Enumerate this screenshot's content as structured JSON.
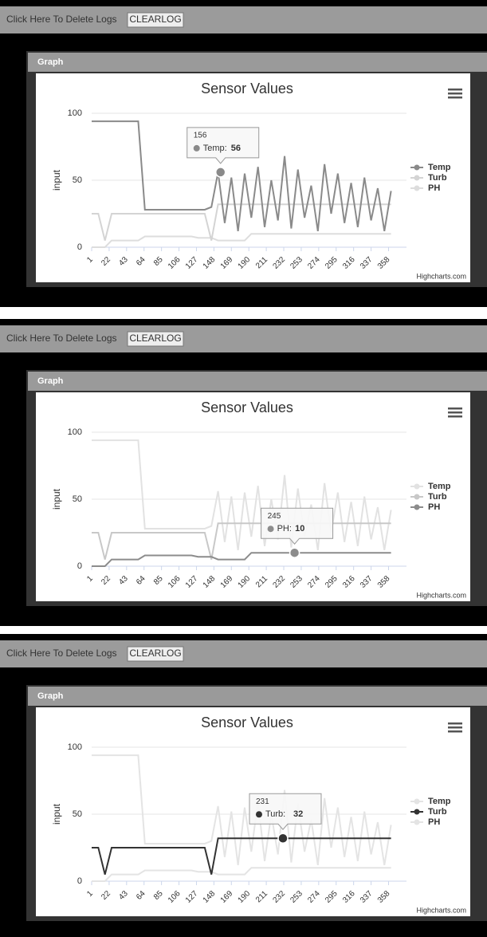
{
  "panels": [
    {
      "toolbar_text": "Click Here To Delete Logs",
      "button": "CLEARLOG",
      "header": "Graph"
    },
    {
      "toolbar_text": "Click Here To Delete Logs",
      "button": "CLEARLOG",
      "header": "Graph"
    },
    {
      "toolbar_text": "Click Here To Delete Logs",
      "button": "CLEARLOG",
      "header": "Graph"
    }
  ],
  "chart_data": [
    {
      "type": "line",
      "title": "Sensor Values",
      "y_label": "input",
      "credit": "Highcharts.com",
      "x": [
        1,
        9,
        17,
        25,
        33,
        41,
        49,
        57,
        65,
        73,
        81,
        89,
        97,
        105,
        113,
        121,
        129,
        137,
        145,
        153,
        161,
        169,
        177,
        185,
        193,
        201,
        209,
        217,
        225,
        233,
        241,
        249,
        257,
        265,
        273,
        281,
        289,
        297,
        305,
        313,
        321,
        329,
        337,
        345,
        353,
        361
      ],
      "xlim": [
        1,
        370
      ],
      "xticks": [
        1,
        22,
        43,
        64,
        85,
        106,
        127,
        148,
        169,
        190,
        211,
        232,
        253,
        274,
        295,
        316,
        337,
        358
      ],
      "ylim": [
        0,
        100
      ],
      "yticks": [
        0,
        50,
        100
      ],
      "grid": true,
      "series": [
        {
          "name": "Temp",
          "color": "#8a8a8a",
          "values": [
            94,
            94,
            94,
            94,
            94,
            94,
            94,
            94,
            28,
            28,
            28,
            28,
            28,
            28,
            28,
            28,
            28,
            28,
            30,
            56,
            18,
            52,
            12,
            55,
            22,
            60,
            15,
            50,
            20,
            68,
            14,
            58,
            22,
            46,
            12,
            62,
            25,
            55,
            18,
            48,
            15,
            52,
            20,
            44,
            12,
            42
          ]
        },
        {
          "name": "Turb",
          "color": "#d4d4d4",
          "values": [
            25,
            25,
            5,
            25,
            25,
            25,
            25,
            25,
            25,
            25,
            25,
            25,
            25,
            25,
            25,
            25,
            25,
            25,
            5,
            32,
            32,
            32,
            32,
            32,
            32,
            32,
            32,
            32,
            32,
            32,
            32,
            32,
            32,
            32,
            32,
            32,
            32,
            32,
            32,
            32,
            32,
            32,
            32,
            32,
            32,
            32
          ]
        },
        {
          "name": "PH",
          "color": "#dddddd",
          "values": [
            0,
            0,
            0,
            5,
            5,
            5,
            5,
            5,
            8,
            8,
            8,
            8,
            8,
            8,
            8,
            8,
            7,
            7,
            7,
            5,
            5,
            5,
            5,
            5,
            10,
            10,
            10,
            10,
            10,
            10,
            10,
            10,
            10,
            10,
            10,
            10,
            10,
            10,
            10,
            10,
            10,
            10,
            10,
            10,
            10,
            10
          ]
        }
      ],
      "tooltip": {
        "x": 156,
        "label": "Temp:",
        "value": 56
      }
    },
    {
      "type": "line",
      "title": "Sensor Values",
      "y_label": "input",
      "credit": "Highcharts.com",
      "x": [
        1,
        9,
        17,
        25,
        33,
        41,
        49,
        57,
        65,
        73,
        81,
        89,
        97,
        105,
        113,
        121,
        129,
        137,
        145,
        153,
        161,
        169,
        177,
        185,
        193,
        201,
        209,
        217,
        225,
        233,
        241,
        249,
        257,
        265,
        273,
        281,
        289,
        297,
        305,
        313,
        321,
        329,
        337,
        345,
        353,
        361
      ],
      "xlim": [
        1,
        370
      ],
      "xticks": [
        1,
        22,
        43,
        64,
        85,
        106,
        127,
        148,
        169,
        190,
        211,
        232,
        253,
        274,
        295,
        316,
        337,
        358
      ],
      "ylim": [
        0,
        100
      ],
      "yticks": [
        0,
        50,
        100
      ],
      "grid": true,
      "series": [
        {
          "name": "Temp",
          "color": "#e2e2e2",
          "values": [
            94,
            94,
            94,
            94,
            94,
            94,
            94,
            94,
            28,
            28,
            28,
            28,
            28,
            28,
            28,
            28,
            28,
            28,
            30,
            56,
            18,
            52,
            12,
            55,
            22,
            60,
            15,
            50,
            20,
            68,
            14,
            58,
            22,
            46,
            12,
            62,
            25,
            55,
            18,
            48,
            15,
            52,
            20,
            44,
            12,
            42
          ]
        },
        {
          "name": "Turb",
          "color": "#c8c8c8",
          "values": [
            25,
            25,
            5,
            25,
            25,
            25,
            25,
            25,
            25,
            25,
            25,
            25,
            25,
            25,
            25,
            25,
            25,
            25,
            5,
            32,
            32,
            32,
            32,
            32,
            32,
            32,
            32,
            32,
            32,
            32,
            32,
            32,
            32,
            32,
            32,
            32,
            32,
            32,
            32,
            32,
            32,
            32,
            32,
            32,
            32,
            32
          ]
        },
        {
          "name": "PH",
          "color": "#8c8c8c",
          "values": [
            0,
            0,
            0,
            5,
            5,
            5,
            5,
            5,
            8,
            8,
            8,
            8,
            8,
            8,
            8,
            8,
            7,
            7,
            7,
            5,
            5,
            5,
            5,
            5,
            10,
            10,
            10,
            10,
            10,
            10,
            10,
            10,
            10,
            10,
            10,
            10,
            10,
            10,
            10,
            10,
            10,
            10,
            10,
            10,
            10,
            10
          ]
        }
      ],
      "tooltip": {
        "x": 245,
        "label": "PH:",
        "value": 10
      }
    },
    {
      "type": "line",
      "title": "Sensor Values",
      "y_label": "input",
      "credit": "Highcharts.com",
      "x": [
        1,
        9,
        17,
        25,
        33,
        41,
        49,
        57,
        65,
        73,
        81,
        89,
        97,
        105,
        113,
        121,
        129,
        137,
        145,
        153,
        161,
        169,
        177,
        185,
        193,
        201,
        209,
        217,
        225,
        233,
        241,
        249,
        257,
        265,
        273,
        281,
        289,
        297,
        305,
        313,
        321,
        329,
        337,
        345,
        353,
        361
      ],
      "xlim": [
        1,
        370
      ],
      "xticks": [
        1,
        22,
        43,
        64,
        85,
        106,
        127,
        148,
        169,
        190,
        211,
        232,
        253,
        274,
        295,
        316,
        337,
        358
      ],
      "ylim": [
        0,
        100
      ],
      "yticks": [
        0,
        50,
        100
      ],
      "grid": true,
      "series": [
        {
          "name": "Temp",
          "color": "#e4e4e4",
          "values": [
            94,
            94,
            94,
            94,
            94,
            94,
            94,
            94,
            28,
            28,
            28,
            28,
            28,
            28,
            28,
            28,
            28,
            28,
            30,
            56,
            18,
            52,
            12,
            55,
            22,
            60,
            15,
            50,
            20,
            68,
            14,
            58,
            22,
            46,
            12,
            62,
            25,
            55,
            18,
            48,
            15,
            52,
            20,
            44,
            12,
            42
          ]
        },
        {
          "name": "Turb",
          "color": "#333333",
          "values": [
            25,
            25,
            5,
            25,
            25,
            25,
            25,
            25,
            25,
            25,
            25,
            25,
            25,
            25,
            25,
            25,
            25,
            25,
            5,
            32,
            32,
            32,
            32,
            32,
            32,
            32,
            32,
            32,
            32,
            32,
            32,
            32,
            32,
            32,
            32,
            32,
            32,
            32,
            32,
            32,
            32,
            32,
            32,
            32,
            32,
            32
          ]
        },
        {
          "name": "PH",
          "color": "#e4e4e4",
          "values": [
            0,
            0,
            0,
            5,
            5,
            5,
            5,
            5,
            8,
            8,
            8,
            8,
            8,
            8,
            8,
            8,
            7,
            7,
            7,
            5,
            5,
            5,
            5,
            5,
            10,
            10,
            10,
            10,
            10,
            10,
            10,
            10,
            10,
            10,
            10,
            10,
            10,
            10,
            10,
            10,
            10,
            10,
            10,
            10,
            10,
            10
          ]
        }
      ],
      "tooltip": {
        "x": 231,
        "label": "Turb:",
        "value": 32
      }
    }
  ]
}
